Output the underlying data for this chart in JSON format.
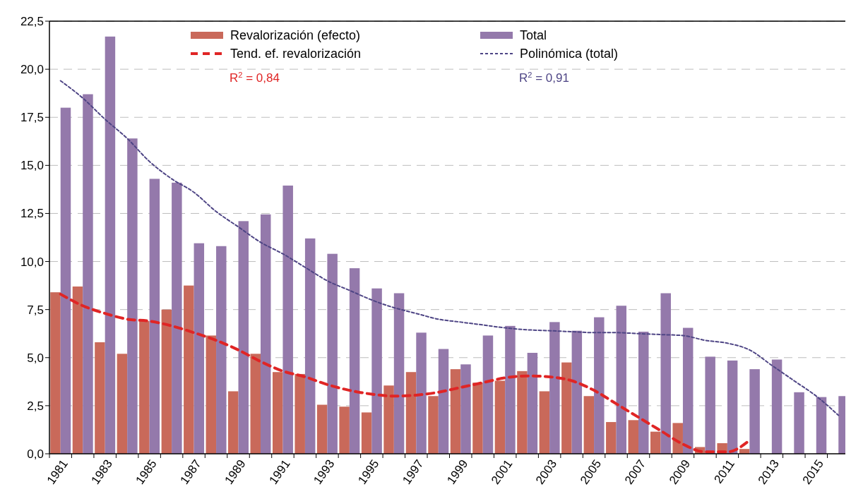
{
  "chart_data": {
    "type": "bar",
    "categories": [
      "1981",
      null,
      "1983",
      null,
      "1985",
      null,
      "1987",
      null,
      "1989",
      null,
      "1991",
      null,
      "1993",
      null,
      "1995",
      null,
      "1997",
      null,
      "1999",
      null,
      "2001",
      null,
      "2003",
      null,
      "2005",
      null,
      "2007",
      null,
      "2009",
      null,
      "2011",
      null,
      "2013",
      null,
      "2015",
      null
    ],
    "series": [
      {
        "name": "Revalorización (efecto)",
        "color": "#c9695a",
        "values": [
          8.4,
          8.7,
          5.8,
          5.2,
          6.9,
          7.5,
          8.75,
          6.15,
          3.25,
          5.2,
          4.25,
          4.15,
          2.55,
          2.45,
          2.15,
          3.55,
          4.25,
          3.0,
          4.4,
          3.7,
          3.8,
          4.3,
          3.25,
          4.75,
          3.0,
          1.65,
          1.75,
          1.15,
          1.6,
          0.35,
          0.55,
          0.25,
          null,
          null,
          null,
          null
        ]
      },
      {
        "name": "Total",
        "color": "#9479ab",
        "values": [
          18.0,
          18.7,
          21.7,
          16.4,
          14.3,
          14.1,
          10.95,
          10.8,
          12.1,
          12.45,
          13.95,
          11.2,
          10.4,
          9.65,
          8.6,
          8.35,
          6.3,
          5.45,
          4.65,
          6.15,
          6.65,
          5.25,
          6.85,
          6.4,
          7.1,
          7.7,
          6.35,
          8.35,
          6.55,
          5.05,
          4.85,
          4.4,
          4.9,
          3.2,
          2.95,
          3.0
        ]
      },
      {
        "name": "Tend. ef. revalorización",
        "type": "line",
        "color": "#e02525",
        "line_style": "dashed",
        "values": [
          8.3,
          7.7,
          7.3,
          7.0,
          6.9,
          6.65,
          6.3,
          5.9,
          5.4,
          4.8,
          4.3,
          4.0,
          3.6,
          3.3,
          3.1,
          3.0,
          3.05,
          3.2,
          3.45,
          3.7,
          3.95,
          4.05,
          4.0,
          3.8,
          3.3,
          2.6,
          1.9,
          1.2,
          0.5,
          0.1,
          0.1,
          0.7,
          null,
          null,
          null,
          null
        ]
      },
      {
        "name": "Polinómica (total)",
        "type": "line",
        "color": "#4e4585",
        "line_style": "dotted",
        "values": [
          19.4,
          18.5,
          17.4,
          16.4,
          15.2,
          14.3,
          13.6,
          12.6,
          11.8,
          11.0,
          10.4,
          9.7,
          9.0,
          8.5,
          8.0,
          7.6,
          7.3,
          7.0,
          6.85,
          6.7,
          6.55,
          6.45,
          6.4,
          6.35,
          6.3,
          6.3,
          6.25,
          6.2,
          6.15,
          5.9,
          5.75,
          5.4,
          4.6,
          3.8,
          3.0,
          2.0
        ]
      }
    ],
    "ylim": [
      0,
      22.5
    ],
    "yticks": [
      {
        "value": 0,
        "label": "0,0"
      },
      {
        "value": 2.5,
        "label": "2,5"
      },
      {
        "value": 5,
        "label": "5,0"
      },
      {
        "value": 7.5,
        "label": "7,5"
      },
      {
        "value": 10,
        "label": "10,0"
      },
      {
        "value": 12.5,
        "label": "12,5"
      },
      {
        "value": 15,
        "label": "15,0"
      },
      {
        "value": 17.5,
        "label": "17,5"
      },
      {
        "value": 20,
        "label": "20,0"
      },
      {
        "value": 22.5,
        "label": "22,5"
      }
    ],
    "grid": "y",
    "legend": "top",
    "annotations": [
      "R$^{2}$ = 0,84",
      "R$^{2}$ = 0,91"
    ]
  }
}
